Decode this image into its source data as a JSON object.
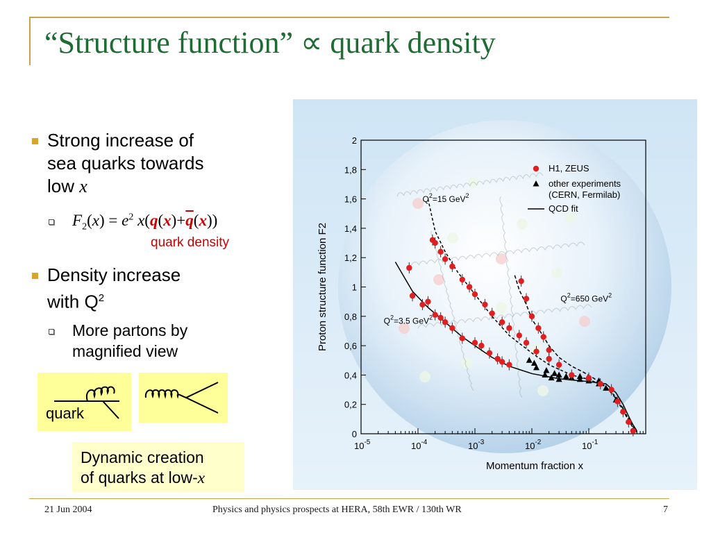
{
  "slide": {
    "title": "“Structure function” ∝ quark density",
    "bullets": [
      {
        "line1": "Strong increase of",
        "line2": "sea quarks towards",
        "line3_prefix": "low ",
        "line3_var": "x"
      },
      {
        "line1": "Density increase",
        "line2_prefix": "with Q",
        "line2_sup": "2"
      }
    ],
    "sub_bullets": [
      {
        "label": "F2(x) = e2 x(q(x)+q̄(x))",
        "annotation": "quark density"
      },
      {
        "line1": "More partons by",
        "line2": "magnified view"
      }
    ],
    "diagram_left_label": "quark",
    "callout": {
      "line1": "Dynamic creation",
      "line2_prefix": "of quarks at low-",
      "line2_var": "x"
    },
    "footer": {
      "date": "21 Jun 2004",
      "center": "Physics and physics prospects at HERA, 58th EWR / 130th WR",
      "page": "7"
    }
  },
  "chart_data": {
    "type": "scatter",
    "title": "",
    "ylabel": "Proton structure function F2",
    "xlabel": "Momentum fraction x",
    "xscale": "log",
    "xlim": [
      1e-05,
      1
    ],
    "ylim": [
      0,
      2
    ],
    "y_ticks": [
      "0",
      "0,2",
      "0,4",
      "0,6",
      "0,8",
      "1",
      "1,2",
      "1,4",
      "1,6",
      "1,8",
      "2"
    ],
    "x_ticks": [
      "10-5",
      "10-4",
      "10-3",
      "10-2",
      "10-1"
    ],
    "legend": {
      "placement": "top-right",
      "entries": [
        {
          "label": "H1, ZEUS",
          "marker": "circle",
          "color": "#e02020"
        },
        {
          "label": "other experiments (CERN, Fermilab)",
          "marker": "triangle",
          "color": "#000000"
        },
        {
          "label": "QCD fit",
          "marker": "line",
          "color": "#000000"
        }
      ]
    },
    "annotations": [
      {
        "text": "Q2=15 GeV2",
        "x": 0.00012,
        "y": 1.58
      },
      {
        "text": "Q2=650 GeV2",
        "x": 0.032,
        "y": 0.9
      },
      {
        "text": "Q2=3.5 GeV2",
        "x": 2.5e-05,
        "y": 0.75
      }
    ],
    "series": [
      {
        "name": "Q2=3.5 GeV2",
        "fit": [
          [
            4e-05,
            1.17
          ],
          [
            8e-05,
            0.97
          ],
          [
            0.00015,
            0.86
          ],
          [
            0.0003,
            0.76
          ],
          [
            0.0006,
            0.66
          ],
          [
            0.001,
            0.6
          ],
          [
            0.002,
            0.52
          ],
          [
            0.004,
            0.46
          ],
          [
            0.01,
            0.41
          ],
          [
            0.03,
            0.375
          ],
          [
            0.1,
            0.355
          ],
          [
            0.2,
            0.34
          ],
          [
            0.3,
            0.28
          ],
          [
            0.4,
            0.2
          ],
          [
            0.5,
            0.12
          ],
          [
            0.6,
            0.06
          ],
          [
            0.7,
            0.02
          ]
        ],
        "h1_zeus": [
          [
            7e-05,
            1.13
          ],
          [
            8e-05,
            0.94
          ],
          [
            0.00012,
            0.88
          ],
          [
            0.00015,
            0.9
          ],
          [
            0.0002,
            0.81
          ],
          [
            0.00025,
            0.79
          ],
          [
            0.0003,
            0.76
          ],
          [
            0.0004,
            0.72
          ],
          [
            0.0006,
            0.65
          ],
          [
            0.001,
            0.62
          ],
          [
            0.0013,
            0.6
          ],
          [
            0.0018,
            0.55
          ],
          [
            0.0025,
            0.51
          ],
          [
            0.003,
            0.49
          ],
          [
            0.004,
            0.47
          ]
        ],
        "other": [
          [
            0.009,
            0.5
          ],
          [
            0.011,
            0.48
          ],
          [
            0.012,
            0.45
          ],
          [
            0.017,
            0.4
          ],
          [
            0.022,
            0.38
          ],
          [
            0.03,
            0.37
          ]
        ]
      },
      {
        "name": "Q2=15 GeV2",
        "fit": [
          [
            0.00015,
            1.6
          ],
          [
            0.0002,
            1.38
          ],
          [
            0.0003,
            1.24
          ],
          [
            0.0005,
            1.1
          ],
          [
            0.001,
            0.95
          ],
          [
            0.002,
            0.8
          ],
          [
            0.004,
            0.67
          ],
          [
            0.01,
            0.55
          ],
          [
            0.02,
            0.47
          ],
          [
            0.05,
            0.4
          ],
          [
            0.1,
            0.37
          ],
          [
            0.2,
            0.32
          ],
          [
            0.3,
            0.25
          ],
          [
            0.4,
            0.17
          ],
          [
            0.5,
            0.1
          ],
          [
            0.6,
            0.05
          ],
          [
            0.7,
            0.01
          ]
        ],
        "h1_zeus": [
          [
            0.00018,
            1.32
          ],
          [
            0.0002,
            1.3
          ],
          [
            0.00025,
            1.24
          ],
          [
            0.0003,
            1.19
          ],
          [
            0.0004,
            1.14
          ],
          [
            0.0006,
            1.05
          ],
          [
            0.0008,
            1.0
          ],
          [
            0.001,
            0.95
          ],
          [
            0.0015,
            0.88
          ],
          [
            0.002,
            0.82
          ],
          [
            0.003,
            0.76
          ],
          [
            0.004,
            0.72
          ],
          [
            0.006,
            0.67
          ],
          [
            0.008,
            0.62
          ],
          [
            0.012,
            0.56
          ],
          [
            0.02,
            0.51
          ]
        ],
        "other": [
          [
            0.018,
            0.43
          ],
          [
            0.025,
            0.41
          ],
          [
            0.03,
            0.4
          ],
          [
            0.04,
            0.39
          ],
          [
            0.05,
            0.38
          ],
          [
            0.07,
            0.37
          ],
          [
            0.1,
            0.36
          ],
          [
            0.15,
            0.34
          ]
        ]
      },
      {
        "name": "Q2=650 GeV2",
        "fit": [
          [
            0.005,
            1.08
          ],
          [
            0.006,
            0.98
          ],
          [
            0.008,
            0.88
          ],
          [
            0.01,
            0.78
          ],
          [
            0.015,
            0.68
          ],
          [
            0.02,
            0.6
          ],
          [
            0.03,
            0.52
          ],
          [
            0.05,
            0.46
          ],
          [
            0.08,
            0.42
          ],
          [
            0.12,
            0.38
          ],
          [
            0.2,
            0.32
          ],
          [
            0.3,
            0.24
          ],
          [
            0.4,
            0.16
          ],
          [
            0.5,
            0.09
          ],
          [
            0.6,
            0.04
          ],
          [
            0.7,
            0.01
          ]
        ],
        "h1_zeus": [
          [
            0.0065,
            1.04
          ],
          [
            0.008,
            0.92
          ],
          [
            0.01,
            0.8
          ],
          [
            0.013,
            0.72
          ],
          [
            0.016,
            0.66
          ],
          [
            0.02,
            0.57
          ],
          [
            0.03,
            0.47
          ],
          [
            0.05,
            0.4
          ],
          [
            0.1,
            0.38
          ],
          [
            0.16,
            0.34
          ],
          [
            0.25,
            0.3
          ],
          [
            0.32,
            0.22
          ],
          [
            0.4,
            0.15
          ],
          [
            0.5,
            0.08
          ],
          [
            0.6,
            0.02
          ]
        ],
        "other": [
          [
            0.07,
            0.39
          ],
          [
            0.1,
            0.38
          ],
          [
            0.15,
            0.36
          ],
          [
            0.2,
            0.31
          ],
          [
            0.3,
            0.23
          ],
          [
            0.4,
            0.16
          ],
          [
            0.5,
            0.09
          ]
        ]
      }
    ]
  }
}
